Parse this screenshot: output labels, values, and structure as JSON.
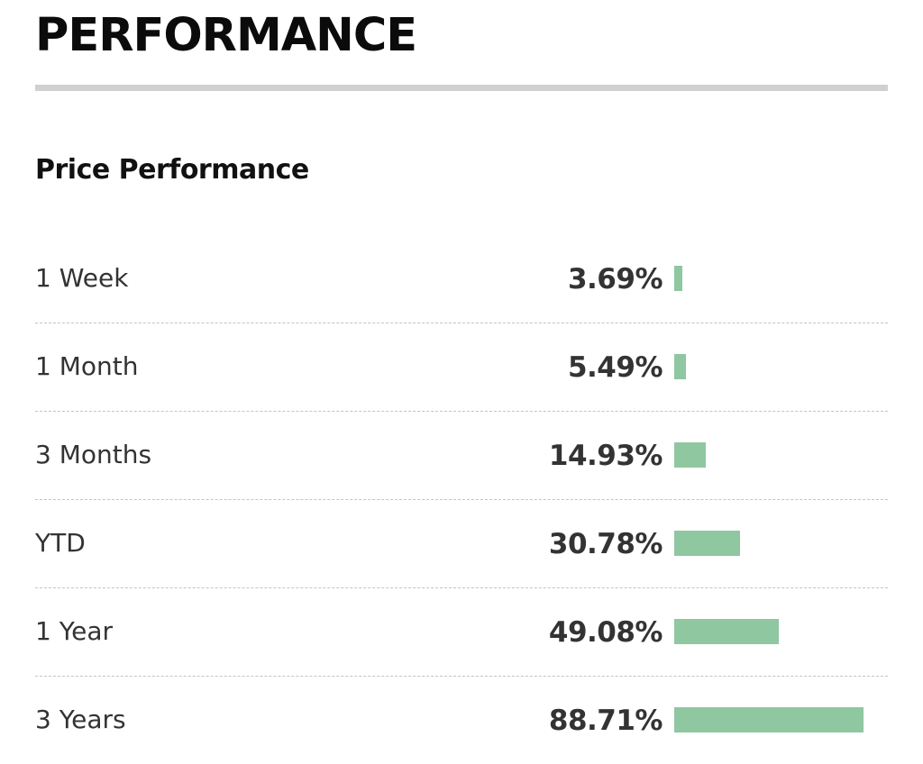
{
  "section": {
    "title": "PERFORMANCE"
  },
  "price_performance": {
    "heading": "Price Performance",
    "bar_color": "#8fc7a0",
    "bar_scale_max": 100,
    "rows": [
      {
        "label": "1 Week",
        "value_text": "3.69%",
        "value": 3.69
      },
      {
        "label": "1 Month",
        "value_text": "5.49%",
        "value": 5.49
      },
      {
        "label": "3 Months",
        "value_text": "14.93%",
        "value": 14.93
      },
      {
        "label": "YTD",
        "value_text": "30.78%",
        "value": 30.78
      },
      {
        "label": "1 Year",
        "value_text": "49.08%",
        "value": 49.08
      },
      {
        "label": "3 Years",
        "value_text": "88.71%",
        "value": 88.71
      }
    ]
  }
}
